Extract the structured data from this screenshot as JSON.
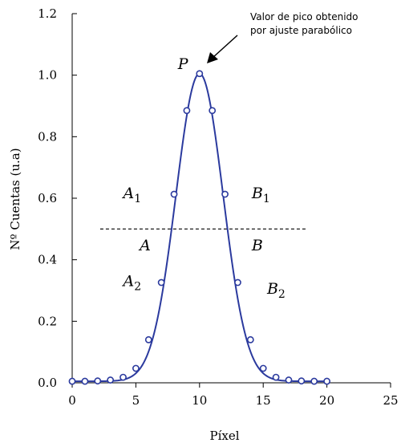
{
  "chart_data": {
    "type": "scatter",
    "title": "",
    "xlabel": "Píxel",
    "ylabel": "Nº Cuentas (u.a)",
    "xlim": [
      0,
      25
    ],
    "ylim": [
      0,
      1.2
    ],
    "xticks": [
      "0",
      "5",
      "10",
      "15",
      "20",
      "25"
    ],
    "yticks": [
      "0.0",
      "0.2",
      "0.4",
      "0.6",
      "0.8",
      "1.0",
      "1.2"
    ],
    "grid": false,
    "series": [
      {
        "style": "markers",
        "color": "#2b3a9e",
        "x": [
          0,
          1,
          2,
          3,
          4,
          5,
          6,
          7,
          8,
          9,
          10,
          11,
          12,
          13,
          14,
          15,
          16,
          17,
          18,
          19,
          20
        ],
        "y": [
          0.005,
          0.005,
          0.006,
          0.009,
          0.018,
          0.047,
          0.14,
          0.326,
          0.613,
          0.885,
          1.005,
          0.885,
          0.613,
          0.326,
          0.14,
          0.047,
          0.018,
          0.009,
          0.006,
          0.005,
          0.005
        ]
      },
      {
        "style": "line",
        "color": "#2b3a9e",
        "fit": "gaussian",
        "center": 10,
        "peak": 1.005,
        "sigma": 1.85
      }
    ],
    "half_max_line": {
      "y": 0.5,
      "x_start": 2.2,
      "x_end": 18.5,
      "style": "dashed"
    },
    "annotations": {
      "peak_note": [
        "Valor de pico obtenido",
        "por ajuste parabólico"
      ],
      "labels": [
        {
          "main": "P",
          "sub": "",
          "x": 8.3,
          "y": 1.02
        },
        {
          "main": "A",
          "sub": "1",
          "x": 4.0,
          "y": 0.6
        },
        {
          "main": "B",
          "sub": "1",
          "x": 14.1,
          "y": 0.6
        },
        {
          "main": "A",
          "sub": "",
          "x": 5.3,
          "y": 0.43
        },
        {
          "main": "B",
          "sub": "",
          "x": 14.1,
          "y": 0.43
        },
        {
          "main": "A",
          "sub": "2",
          "x": 4.0,
          "y": 0.315
        },
        {
          "main": "B",
          "sub": "2",
          "x": 15.3,
          "y": 0.29
        }
      ]
    }
  }
}
